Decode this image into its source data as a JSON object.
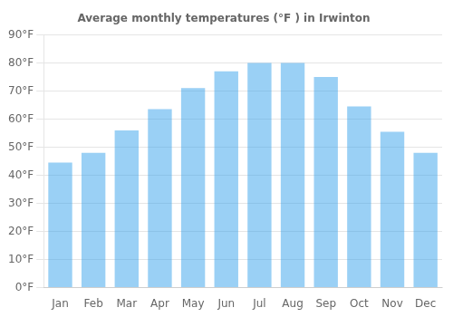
{
  "chart_data": {
    "type": "bar",
    "title": "Average monthly temperatures (°F ) in Irwinton",
    "categories": [
      "Jan",
      "Feb",
      "Mar",
      "Apr",
      "May",
      "Jun",
      "Jul",
      "Aug",
      "Sep",
      "Oct",
      "Nov",
      "Dec"
    ],
    "values": [
      44.5,
      48,
      56,
      63.5,
      71,
      77,
      80,
      80,
      75,
      64.5,
      55.5,
      48
    ],
    "ylim": [
      0,
      90
    ],
    "yticks": [
      {
        "value": 0,
        "label": "0°F"
      },
      {
        "value": 10,
        "label": "10°F"
      },
      {
        "value": 20,
        "label": "20°F"
      },
      {
        "value": 30,
        "label": "30°F"
      },
      {
        "value": 40,
        "label": "40°F"
      },
      {
        "value": 50,
        "label": "50°F"
      },
      {
        "value": 60,
        "label": "60°F"
      },
      {
        "value": 70,
        "label": "70°F"
      },
      {
        "value": 80,
        "label": "80°F"
      },
      {
        "value": 90,
        "label": "90°F"
      }
    ],
    "grid": true
  }
}
